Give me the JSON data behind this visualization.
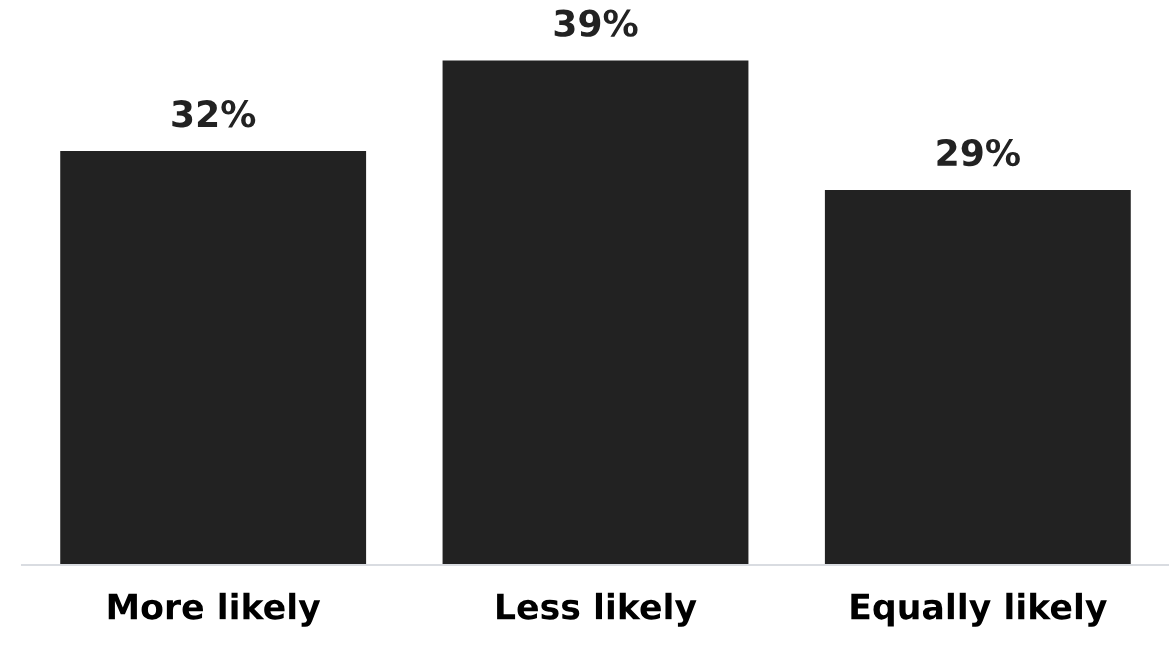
{
  "chart_data": {
    "type": "bar",
    "categories": [
      "More likely",
      "Less likely",
      "Equally likely"
    ],
    "values": [
      32,
      39,
      29
    ],
    "color": "#222222",
    "value_labels": [
      "32%",
      "39%",
      "29%"
    ],
    "grid": false,
    "legend": false,
    "tick_labels": "x"
  }
}
